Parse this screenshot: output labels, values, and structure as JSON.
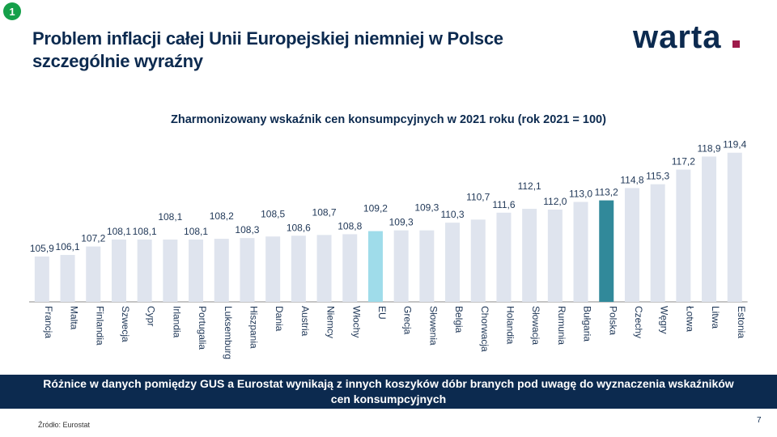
{
  "badge": "1",
  "title_line1": "Problem inflacji całej Unii Europejskiej niemniej w Polsce",
  "title_line2": "szczególnie wyraźny",
  "logo": "warta",
  "banner_line1": "Różnice w danych pomiędzy GUS a Eurostat wynikają z innych koszyków dóbr branych pod uwagę do wyznaczenia wskaźników",
  "banner_line2": "cen konsumpcyjnych",
  "source": "Źródło: Eurostat",
  "page_number": "7",
  "colors": {
    "default_bar": "#dfe4ee",
    "eu_bar": "#9fdcea",
    "poland_bar": "#31899a",
    "navy": "#0c2a4f"
  },
  "chart_data": {
    "type": "bar",
    "title": "Zharmonizowany wskaźnik cen konsumpcyjnych w 2021 roku (rok 2021 = 100)",
    "categories": [
      "Francja",
      "Malta",
      "Finlandia",
      "Szwecja",
      "Cypr",
      "Irlandia",
      "Portugalia",
      "Luksemburg",
      "Hiszpania",
      "Dania",
      "Austria",
      "Niemcy",
      "Włochy",
      "EU",
      "Grecja",
      "Słowenia",
      "Belgia",
      "Chorwacja",
      "Holandia",
      "Słowacja",
      "Rumunia",
      "Bułgaria",
      "Polska",
      "Czechy",
      "Węgry",
      "Łotwa",
      "Litwa",
      "Estonia"
    ],
    "values": [
      105.9,
      106.1,
      107.2,
      108.1,
      108.1,
      108.1,
      108.1,
      108.2,
      108.3,
      108.5,
      108.6,
      108.7,
      108.8,
      109.2,
      109.3,
      109.3,
      110.3,
      110.7,
      111.6,
      112.1,
      112.0,
      113.0,
      113.2,
      114.8,
      115.3,
      117.2,
      118.9,
      119.4
    ],
    "data_labels": [
      "105,9",
      "106,1",
      "107,2",
      "108,1",
      "108,1",
      "108,1",
      "108,1",
      "108,2",
      "108,3",
      "108,5",
      "108,6",
      "108,7",
      "108,8",
      "109,2",
      "109,3",
      "109,3",
      "110,3",
      "110,7",
      "111,6",
      "112,1",
      "112,0",
      "113,0",
      "113,2",
      "114,8",
      "115,3",
      "117,2",
      "118,9",
      "119,4"
    ],
    "highlight": {
      "EU": "eu_bar",
      "Polska": "poland_bar"
    },
    "xlabel": "",
    "ylabel": "",
    "grid": false,
    "legend": "none"
  }
}
